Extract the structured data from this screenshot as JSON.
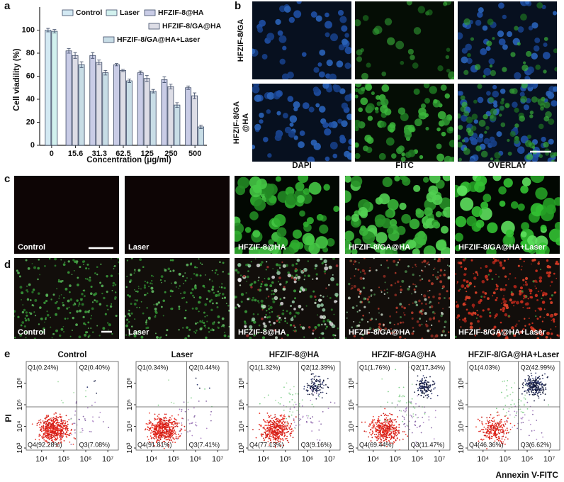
{
  "panel_labels": [
    "a",
    "b",
    "c",
    "d",
    "e"
  ],
  "chart_data": [
    {
      "type": "bar",
      "y_label": "Cell viadility (%)",
      "x_label": "Concentration (μg/ml)",
      "categories": [
        "0",
        "15.6",
        "31.3",
        "62.5",
        "125",
        "250",
        "500"
      ],
      "ylim": [
        0,
        120
      ],
      "yticks": [
        0,
        20,
        40,
        60,
        80,
        100
      ],
      "series": [
        {
          "name": "Control",
          "color": "#d3e9f3",
          "values": [
            100,
            null,
            null,
            null,
            null,
            null,
            null
          ],
          "errors": [
            1.5,
            null,
            null,
            null,
            null,
            null,
            null
          ]
        },
        {
          "name": "Laser",
          "color": "#d2f1ee",
          "values": [
            99,
            null,
            null,
            null,
            null,
            null,
            null
          ],
          "errors": [
            1.5,
            null,
            null,
            null,
            null,
            null,
            null
          ]
        },
        {
          "name": "HFZIF-8@HA",
          "color": "#c9cce6",
          "values": [
            null,
            82,
            78,
            70,
            63,
            57,
            50
          ],
          "errors": [
            null,
            2,
            2.5,
            1,
            1.5,
            2.5,
            1.5
          ]
        },
        {
          "name": "HFZIF-8/GA@HA",
          "color": "#dddde6",
          "values": [
            null,
            78,
            72,
            65,
            58,
            51,
            43
          ],
          "errors": [
            null,
            2.5,
            2,
            1,
            2.5,
            2,
            2.5
          ]
        },
        {
          "name": "HFZIF-8/GA@HA+Laser",
          "color": "#c8dde6",
          "values": [
            null,
            70,
            63,
            56,
            47,
            35,
            16
          ],
          "errors": [
            null,
            2.5,
            2,
            1.5,
            1.5,
            2,
            1.5
          ]
        }
      ]
    }
  ],
  "panel_b": {
    "rows": [
      [
        "HFZIF-8/GA"
      ],
      [
        "HFZIF-8/GA",
        "@HA"
      ]
    ],
    "columns": [
      "DAPI",
      "FITC",
      "OVERLAY"
    ]
  },
  "panel_c": {
    "labels": [
      "Control",
      "Laser",
      "HFZIF-8@HA",
      "HFZIF-8/GA@HA",
      "HFZIF-8/GA@HA+Laser"
    ]
  },
  "panel_d": {
    "labels": [
      "Control",
      "Laser",
      "HFZIF-8@HA",
      "HFZIF-8/GA@HA",
      "HFZIF-8/GA@HA+Laser"
    ]
  },
  "panel_e": {
    "x_label": "Annexin V-FITC",
    "y_label": "PI",
    "log": true,
    "xlim": [
      2000,
      30000000
    ],
    "ylim": [
      800,
      10000000
    ],
    "xticks": [
      {
        "value": 10000,
        "label": "10⁴"
      },
      {
        "value": 100000,
        "label": "10⁵"
      },
      {
        "value": 1000000,
        "label": "10⁶"
      },
      {
        "value": 10000000,
        "label": "10⁷"
      }
    ],
    "yticks": [
      {
        "value": 1000,
        "label": "10³"
      },
      {
        "value": 10000,
        "label": "10⁴"
      },
      {
        "value": 100000,
        "label": "10⁵"
      },
      {
        "value": 1000000,
        "label": "10⁶"
      }
    ],
    "gate_x": 400000,
    "gate_y": 80000,
    "plots": [
      {
        "title": "Control",
        "quadrants": [
          "Q1(0.24%)",
          "Q2(0.40%)",
          "Q4(92.28%)",
          "Q3(7.08%)"
        ]
      },
      {
        "title": "Laser",
        "quadrants": [
          "Q1(0.34%)",
          "Q2(0.44%)",
          "Q4(91.81%)",
          "Q3(7.41%)"
        ]
      },
      {
        "title": "HFZIF-8@HA",
        "quadrants": [
          "Q1(1.32%)",
          "Q2(12.39%)",
          "Q4(77.13%)",
          "Q3(9.16%)"
        ]
      },
      {
        "title": "HFZIF-8/GA@HA",
        "quadrants": [
          "Q1(1.76%)",
          "Q2(17.34%)",
          "Q4(69.44%)",
          "Q3(11.47%)"
        ]
      },
      {
        "title": "HFZIF-8/GA@HA+Laser",
        "quadrants": [
          "Q1(4.03%)",
          "Q2(42.99%)",
          "Q4(46.36%)",
          "Q3(6.62%)"
        ]
      }
    ]
  }
}
